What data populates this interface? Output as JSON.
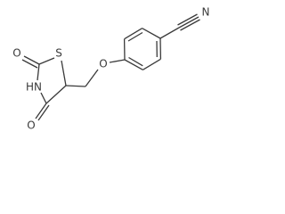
{
  "atoms": [
    {
      "label": "O"
    },
    {
      "label": "S"
    },
    {
      "label": "HN"
    },
    {
      "label": "O"
    },
    {
      "label": "O"
    },
    {
      "label": "N"
    }
  ]
}
